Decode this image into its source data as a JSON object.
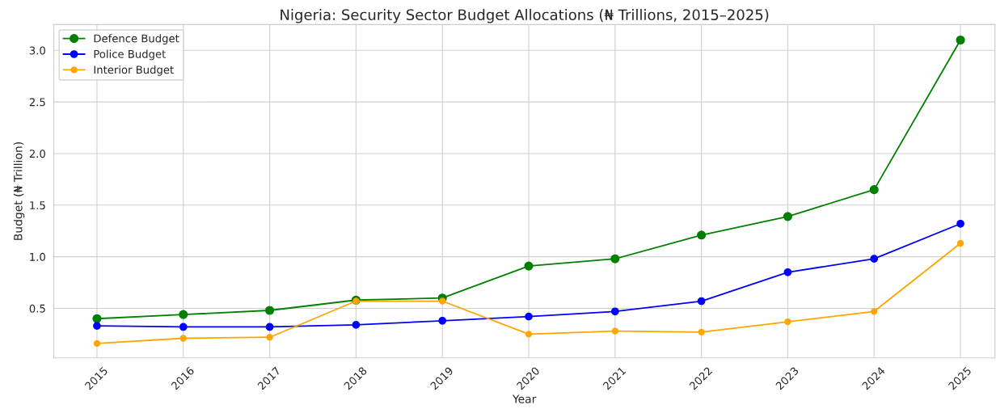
{
  "chart_data": {
    "type": "line",
    "title": "Nigeria: Security Sector Budget Allocations (₦ Trillions, 2015–2025)",
    "xlabel": "Year",
    "ylabel": "Budget (₦ Trillion)",
    "x": [
      2015,
      2016,
      2017,
      2018,
      2019,
      2020,
      2021,
      2022,
      2023,
      2024,
      2025
    ],
    "series": [
      {
        "name": "Defence Budget",
        "color": "#008000",
        "values": [
          0.4,
          0.44,
          0.48,
          0.58,
          0.6,
          0.91,
          0.98,
          1.21,
          1.39,
          1.65,
          3.1
        ]
      },
      {
        "name": "Police Budget",
        "color": "#0000ff",
        "values": [
          0.33,
          0.32,
          0.32,
          0.34,
          0.38,
          0.42,
          0.47,
          0.57,
          0.85,
          0.98,
          1.32
        ]
      },
      {
        "name": "Interior Budget",
        "color": "#ffa500",
        "values": [
          0.16,
          0.21,
          0.22,
          0.57,
          0.57,
          0.25,
          0.28,
          0.27,
          0.37,
          0.47,
          1.13
        ]
      }
    ],
    "xlim": [
      2014.5,
      2025.4
    ],
    "xticks": [
      2015,
      2016,
      2017,
      2018,
      2019,
      2020,
      2021,
      2022,
      2023,
      2024,
      2025
    ],
    "ylim": [
      0.02,
      3.25
    ],
    "yticks": [
      {
        "value": 0.5,
        "label": "0.5"
      },
      {
        "value": 1.0,
        "label": "1.0"
      },
      {
        "value": 1.5,
        "label": "1.5"
      },
      {
        "value": 2.0,
        "label": "2.0"
      },
      {
        "value": 2.5,
        "label": "2.5"
      },
      {
        "value": 3.0,
        "label": "3.0"
      }
    ],
    "grid": true,
    "legend": "top left",
    "marker": "circle",
    "line_style": "solid"
  }
}
